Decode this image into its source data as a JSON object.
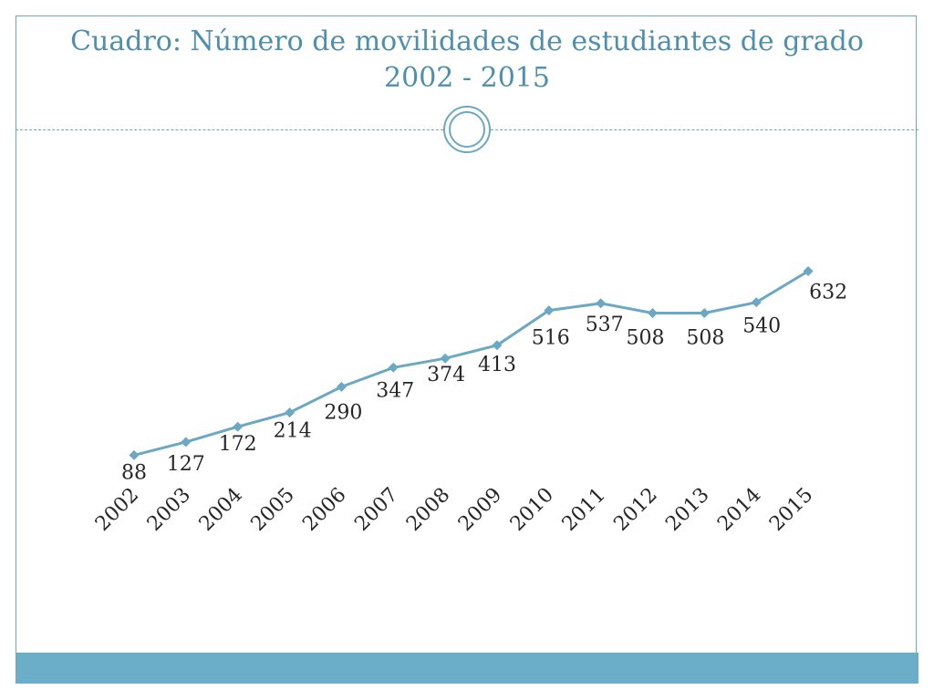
{
  "slide": {
    "title_line1": "Cuadro: Número de movilidades de estudiantes de grado",
    "title_line2": "2002 - 2015"
  },
  "colors": {
    "accent": "#6aaec8",
    "line": "#6aa8c4",
    "text": "#262626"
  },
  "chart_data": {
    "type": "line",
    "title": "",
    "xlabel": "",
    "ylabel": "",
    "categories": [
      "2002",
      "2003",
      "2004",
      "2005",
      "2006",
      "2007",
      "2008",
      "2009",
      "2010",
      "2011",
      "2012",
      "2013",
      "2014",
      "2015"
    ],
    "values": [
      88,
      127,
      172,
      214,
      290,
      347,
      374,
      413,
      516,
      537,
      508,
      508,
      540,
      632
    ],
    "data_labels": [
      "88",
      "127",
      "172",
      "214",
      "290",
      "347",
      "374",
      "413",
      "516",
      "537",
      "508",
      "508",
      "540",
      "632"
    ],
    "marker": "diamond",
    "grid": false,
    "legend": "none"
  }
}
